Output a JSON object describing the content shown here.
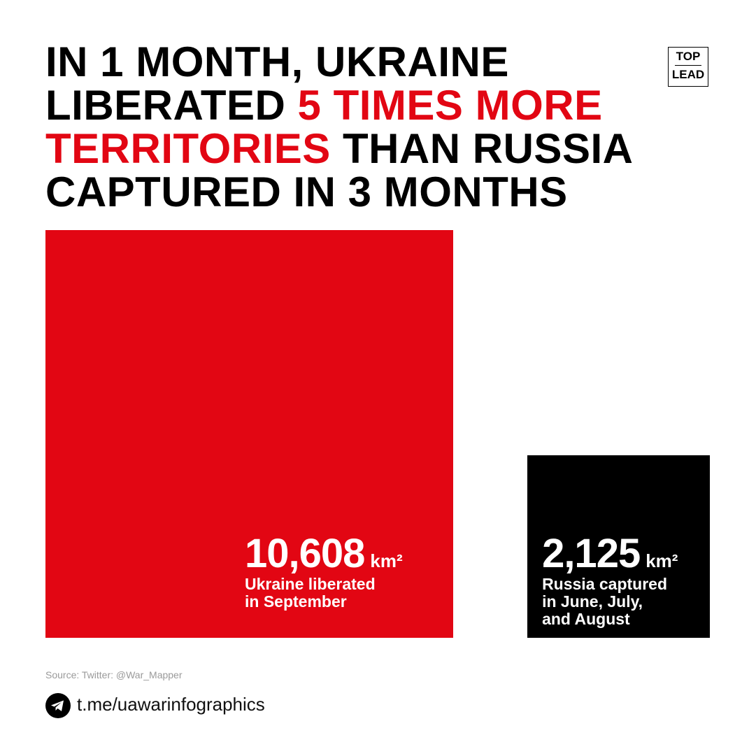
{
  "chart_data": {
    "type": "square",
    "title": [
      {
        "text": "IN 1 MONTH, UKRAINE LIBERATED ",
        "color": "#000000"
      },
      {
        "text": "5 TIMES MORE TERRITORIES",
        "color": "#e20613"
      },
      {
        "text": " THAN RUSSIA CAPTURED IN 3 MONTHS",
        "color": "#000000"
      }
    ],
    "logo": [
      "TOP",
      "LEAD"
    ],
    "categories": [
      [
        "Ukraine liberated",
        "in September"
      ],
      [
        "Russia captured",
        "in June, July,",
        "and August"
      ]
    ],
    "values": [
      10608,
      2125
    ],
    "value_labels": [
      "10,608",
      "2,125"
    ],
    "unit": "km²",
    "colors": [
      "#e20613",
      "#000000"
    ],
    "source": "Source: Twitter: @War_Mapper",
    "link": "t.me/uawarinfographics"
  }
}
